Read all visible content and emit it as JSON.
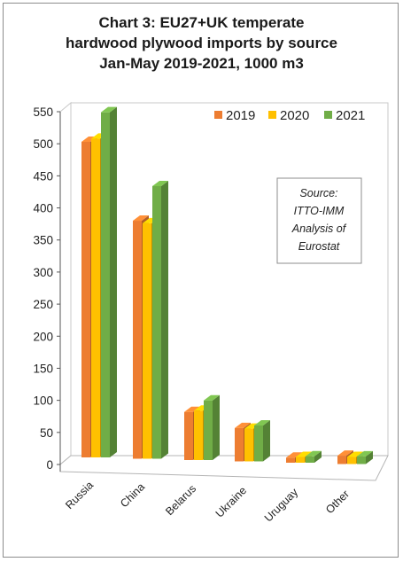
{
  "chart_data": {
    "type": "bar",
    "title_lines": [
      "Chart 3: EU27+UK temperate",
      "hardwood plywood imports by source",
      "Jan-May 2019-2021, 1000 m3"
    ],
    "categories": [
      "Russia",
      "China",
      "Belarus",
      "Ukraine",
      "Uruguay",
      "Other"
    ],
    "series": [
      {
        "name": "2019",
        "color": "#ed7d31",
        "values": [
          492,
          371,
          75,
          52,
          8,
          13
        ]
      },
      {
        "name": "2020",
        "color": "#ffc000",
        "values": [
          497,
          367,
          77,
          51,
          9,
          11
        ]
      },
      {
        "name": "2021",
        "color": "#70ad47",
        "values": [
          538,
          425,
          93,
          56,
          10,
          12
        ]
      }
    ],
    "ylim": [
      0,
      550
    ],
    "yticks": [
      0,
      50,
      100,
      150,
      200,
      250,
      300,
      350,
      400,
      450,
      500,
      550
    ],
    "legend_position": "top-right",
    "grid": false,
    "annotation_lines": [
      "Source:",
      "ITTO-IMM",
      "Analysis of",
      "Eurostat"
    ]
  }
}
